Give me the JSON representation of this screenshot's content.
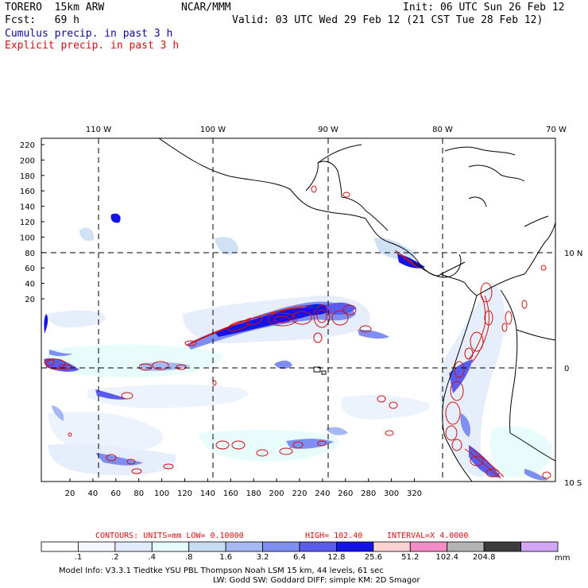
{
  "header": {
    "model": "TORERO  15km ARW",
    "org": "NCAR/MMM",
    "init": "Init: 06 UTC Sun 26 Feb 12",
    "fcst": "Fcst:   69 h",
    "valid": "Valid: 03 UTC Wed 29 Feb 12 (21 CST Tue 28 Feb 12)",
    "cumulus": "Cumulus precip. in past 3 h",
    "explicit": "Explicit precip. in past 3 h"
  },
  "colors": {
    "cumulus": "#1414c8",
    "explicit": "#d01010"
  },
  "map": {
    "top_lon_labels": [
      "110 W",
      "100 W",
      "90 W",
      "80 W",
      "70 W"
    ],
    "right_lat_labels": [
      "10 N",
      "0",
      "10 S"
    ],
    "y_ticks": [
      "220",
      "200",
      "180",
      "160",
      "140",
      "120",
      "100",
      "80",
      "60",
      "40",
      "20"
    ],
    "x_ticks": [
      "20",
      "40",
      "60",
      "80",
      "100",
      "120",
      "140",
      "160",
      "180",
      "200",
      "220",
      "240",
      "260",
      "280",
      "300",
      "320"
    ]
  },
  "legend": {
    "contours_label": "CONTOURS:  UNITS=mm  LOW= 0.10000",
    "high_label": "HIGH=  102.40",
    "interval_label": "INTERVAL=X  4.0000",
    "unit": "mm",
    "bins": [
      {
        "label": ".1",
        "color": "#ffffff"
      },
      {
        "label": ".2",
        "color": "#f4f8ff"
      },
      {
        "label": ".4",
        "color": "#e2ecfc"
      },
      {
        "label": ".8",
        "color": "#e6fcfc"
      },
      {
        "label": "1.6",
        "color": "#c8dcf4"
      },
      {
        "label": "3.2",
        "color": "#a6b8f4"
      },
      {
        "label": "6.4",
        "color": "#7e8ef2"
      },
      {
        "label": "12.8",
        "color": "#5a5cf0"
      },
      {
        "label": "25.6",
        "color": "#1414e6"
      },
      {
        "label": "51.2",
        "color": "#fcd2d2"
      },
      {
        "label": "102.4",
        "color": "#f58cc8"
      },
      {
        "label": "204.8",
        "color": "#b4b4b4"
      },
      {
        "label": "",
        "color": "#3c3c3c"
      },
      {
        "label": "",
        "color": "#d2a6f4"
      }
    ]
  },
  "footer": {
    "line1": "Model Info: V3.3.1    Tiedtke YSU PBL  Thompson     Noah LSM  15 km,    44 levels,    61 sec",
    "line2": "LW: Godd SW: Goddard DIFF: simple KM: 2D Smagor"
  }
}
